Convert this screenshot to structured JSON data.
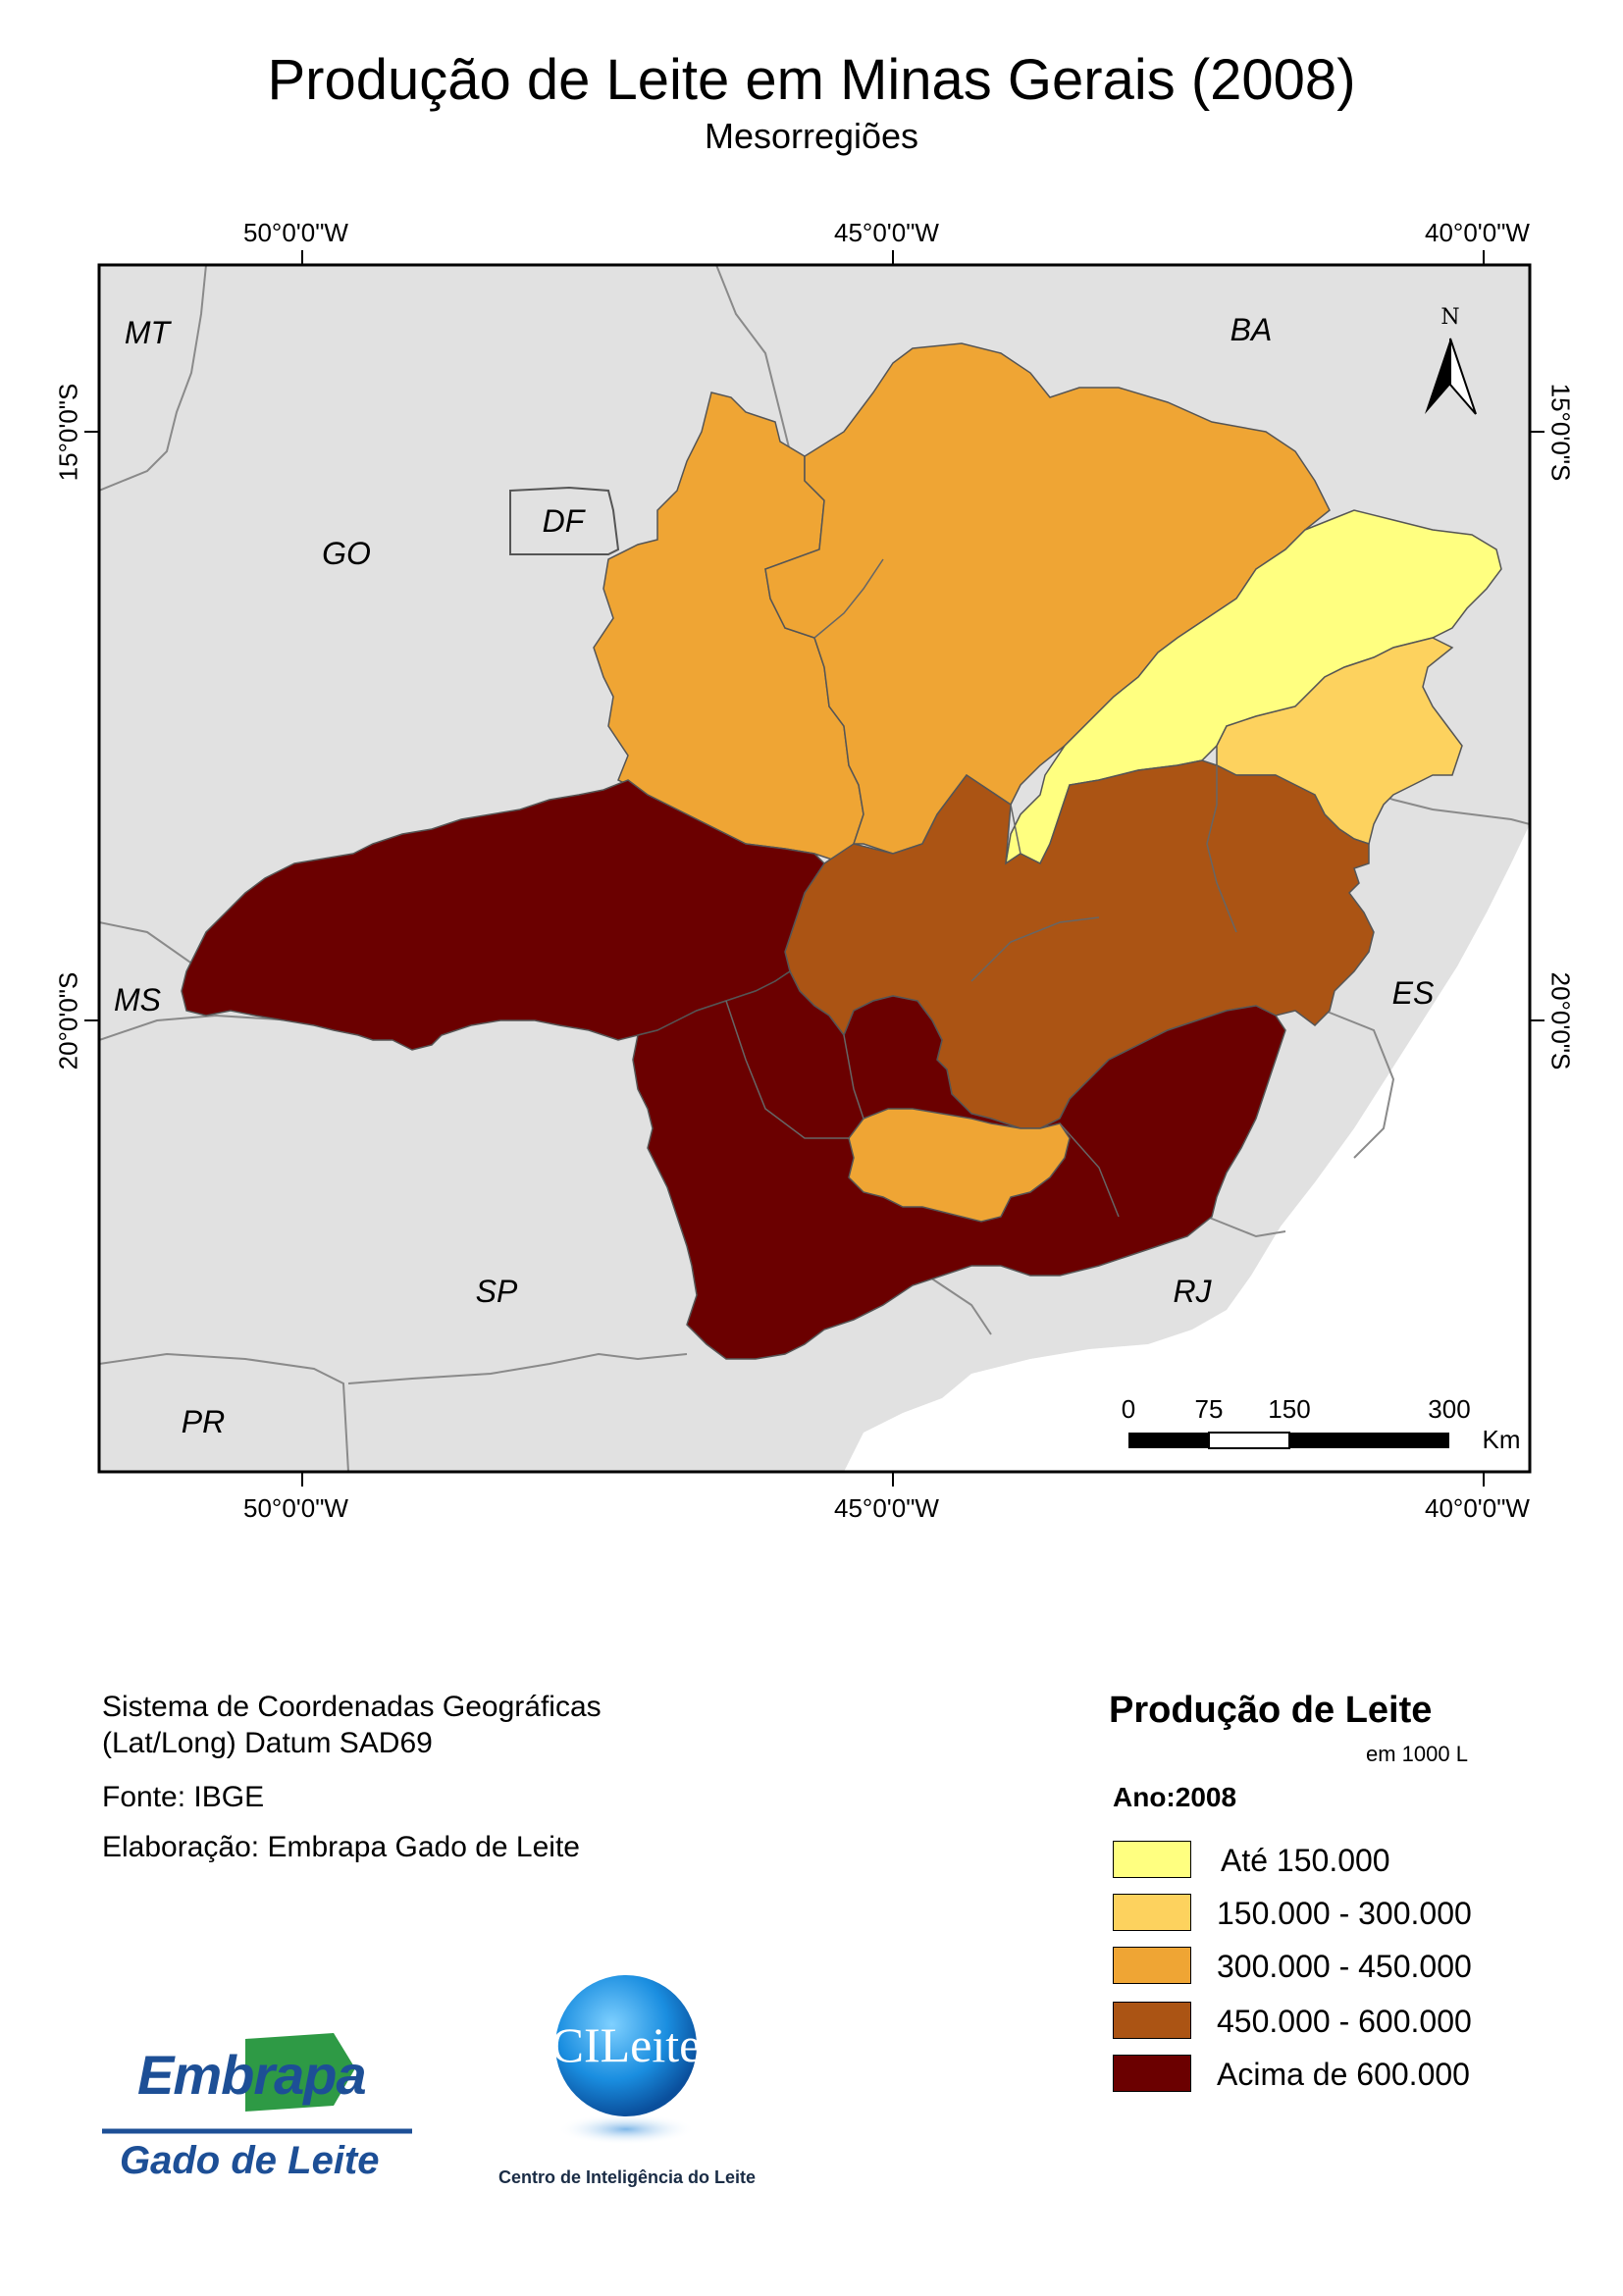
{
  "title": "Produção de Leite em Minas Gerais (2008)",
  "subtitle": "Mesorregiões",
  "graticule": {
    "lon_labels": [
      "50°0'0\"W",
      "45°0'0\"W",
      "40°0'0\"W"
    ],
    "lat_labels": [
      "15°0'0\"S",
      "20°0'0\"S"
    ]
  },
  "states": [
    "MT",
    "BA",
    "GO",
    "DF",
    "MS",
    "ES",
    "SP",
    "RJ",
    "PR"
  ],
  "north_arrow": {
    "label": "N"
  },
  "scale_bar": {
    "ticks": [
      "0",
      "75",
      "150",
      "300"
    ],
    "unit": "Km"
  },
  "info": {
    "coordinate_system_line1": "Sistema de Coordenadas Geográficas",
    "coordinate_system_line2": "(Lat/Long) Datum SAD69",
    "source": "Fonte: IBGE",
    "author": "Elaboração: Embrapa Gado de Leite"
  },
  "legend": {
    "title": "Produção de Leite",
    "unit": "em 1000 L",
    "year": "Ano:2008",
    "classes": [
      {
        "label": "Até 150.000",
        "color": "#ffff80"
      },
      {
        "label": "150.000 - 300.000",
        "color": "#fdd25e"
      },
      {
        "label": "300.000 - 450.000",
        "color": "#efa534"
      },
      {
        "label": "450.000 - 600.000",
        "color": "#ab5414"
      },
      {
        "label": "Acima de 600.000",
        "color": "#6b0000"
      }
    ]
  },
  "logos": {
    "embrapa": {
      "word": "Embrapa",
      "sub": "Gado de Leite"
    },
    "cileite": {
      "word": "CILeite",
      "tagline": "Centro de Inteligência do Leite"
    }
  },
  "colors": {
    "map_background": "#e1e1e1",
    "sea": "#ffffff",
    "border": "#000000"
  }
}
